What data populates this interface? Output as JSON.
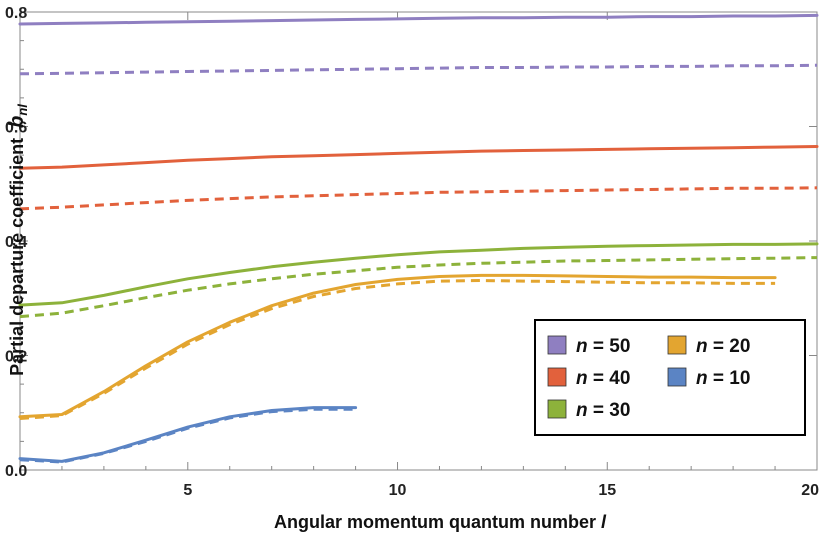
{
  "chart_data": {
    "type": "line",
    "title": "",
    "xlabel": "Angular momentum quantum number",
    "xlabel_symbol": "l",
    "ylabel": "Partial departure coefficient",
    "ylabel_symbol": "b",
    "ylabel_subscript": "nl",
    "xlim": [
      1,
      20
    ],
    "ylim": [
      0,
      0.8
    ],
    "x_ticks": [
      5,
      10,
      15,
      20
    ],
    "y_ticks": [
      0.0,
      0.2,
      0.4,
      0.6,
      0.8
    ],
    "x_tick_labels": [
      "5",
      "10",
      "15",
      "20"
    ],
    "y_tick_labels": [
      "0.0",
      "0.2",
      "0.4",
      "0.6",
      "0.8"
    ],
    "grid": false,
    "legend_position": "bottom-right",
    "legend_symbol": "n",
    "legend_eq": "=",
    "series": [
      {
        "name": "50",
        "legend_row": 0,
        "legend_col": 0,
        "color": "#8F7FC1",
        "style": "solid",
        "x": [
          1,
          2,
          3,
          4,
          5,
          6,
          7,
          8,
          9,
          10,
          11,
          12,
          13,
          14,
          15,
          16,
          17,
          18,
          19,
          20
        ],
        "y": [
          0.779,
          0.78,
          0.781,
          0.782,
          0.783,
          0.784,
          0.785,
          0.786,
          0.787,
          0.788,
          0.789,
          0.79,
          0.79,
          0.791,
          0.791,
          0.792,
          0.792,
          0.793,
          0.793,
          0.794
        ]
      },
      {
        "name": "",
        "color": "#8F7FC1",
        "style": "dashed",
        "x": [
          1,
          2,
          3,
          4,
          5,
          6,
          7,
          8,
          9,
          10,
          11,
          12,
          13,
          14,
          15,
          16,
          17,
          18,
          19,
          20
        ],
        "y": [
          0.692,
          0.693,
          0.694,
          0.695,
          0.696,
          0.697,
          0.698,
          0.699,
          0.7,
          0.701,
          0.702,
          0.703,
          0.703,
          0.704,
          0.704,
          0.705,
          0.705,
          0.706,
          0.706,
          0.707
        ]
      },
      {
        "name": "40",
        "legend_row": 1,
        "legend_col": 0,
        "color": "#E2613C",
        "style": "solid",
        "x": [
          1,
          2,
          3,
          4,
          5,
          6,
          7,
          8,
          9,
          10,
          11,
          12,
          13,
          14,
          15,
          16,
          17,
          18,
          19,
          20
        ],
        "y": [
          0.527,
          0.529,
          0.533,
          0.537,
          0.541,
          0.544,
          0.547,
          0.549,
          0.551,
          0.553,
          0.555,
          0.557,
          0.558,
          0.559,
          0.56,
          0.561,
          0.562,
          0.563,
          0.564,
          0.565
        ]
      },
      {
        "name": "",
        "color": "#E2613C",
        "style": "dashed",
        "x": [
          1,
          2,
          3,
          4,
          5,
          6,
          7,
          8,
          9,
          10,
          11,
          12,
          13,
          14,
          15,
          16,
          17,
          18,
          19,
          20
        ],
        "y": [
          0.456,
          0.459,
          0.463,
          0.467,
          0.471,
          0.474,
          0.477,
          0.479,
          0.481,
          0.483,
          0.485,
          0.486,
          0.487,
          0.488,
          0.489,
          0.49,
          0.491,
          0.492,
          0.492,
          0.493
        ]
      },
      {
        "name": "30",
        "legend_row": 2,
        "legend_col": 0,
        "color": "#8DB23B",
        "style": "solid",
        "x": [
          1,
          2,
          3,
          4,
          5,
          6,
          7,
          8,
          9,
          10,
          11,
          12,
          13,
          14,
          15,
          16,
          17,
          18,
          19,
          20
        ],
        "y": [
          0.288,
          0.292,
          0.305,
          0.32,
          0.334,
          0.345,
          0.355,
          0.363,
          0.37,
          0.376,
          0.381,
          0.384,
          0.387,
          0.389,
          0.391,
          0.392,
          0.393,
          0.394,
          0.394,
          0.395
        ]
      },
      {
        "name": "",
        "color": "#8DB23B",
        "style": "dashed",
        "x": [
          1,
          2,
          3,
          4,
          5,
          6,
          7,
          8,
          9,
          10,
          11,
          12,
          13,
          14,
          15,
          16,
          17,
          18,
          19,
          20
        ],
        "y": [
          0.268,
          0.274,
          0.287,
          0.301,
          0.314,
          0.325,
          0.334,
          0.342,
          0.348,
          0.354,
          0.358,
          0.361,
          0.363,
          0.365,
          0.366,
          0.367,
          0.368,
          0.369,
          0.37,
          0.371
        ]
      },
      {
        "name": "20",
        "legend_row": 0,
        "legend_col": 1,
        "color": "#E3A530",
        "style": "solid",
        "x": [
          1,
          2,
          3,
          4,
          5,
          6,
          7,
          8,
          9,
          10,
          11,
          12,
          13,
          14,
          15,
          16,
          17,
          18,
          19
        ],
        "y": [
          0.093,
          0.097,
          0.137,
          0.182,
          0.224,
          0.258,
          0.287,
          0.309,
          0.324,
          0.333,
          0.338,
          0.34,
          0.34,
          0.339,
          0.338,
          0.337,
          0.337,
          0.336,
          0.336
        ]
      },
      {
        "name": "",
        "color": "#E3A530",
        "style": "dashed",
        "x": [
          1,
          2,
          3,
          4,
          5,
          6,
          7,
          8,
          9,
          10,
          11,
          12,
          13,
          14,
          15,
          16,
          17,
          18,
          19
        ],
        "y": [
          0.09,
          0.095,
          0.134,
          0.178,
          0.22,
          0.254,
          0.282,
          0.303,
          0.317,
          0.325,
          0.33,
          0.331,
          0.33,
          0.329,
          0.328,
          0.327,
          0.327,
          0.326,
          0.326
        ]
      },
      {
        "name": "10",
        "legend_row": 1,
        "legend_col": 1,
        "color": "#5B84C4",
        "style": "solid",
        "x": [
          1,
          2,
          3,
          4,
          5,
          6,
          7,
          8,
          9
        ],
        "y": [
          0.02,
          0.015,
          0.03,
          0.052,
          0.075,
          0.093,
          0.104,
          0.109,
          0.109
        ]
      },
      {
        "name": "",
        "color": "#5B84C4",
        "style": "dashed",
        "x": [
          1,
          2,
          3,
          4,
          5,
          6,
          7,
          8,
          9
        ],
        "y": [
          0.018,
          0.014,
          0.029,
          0.05,
          0.073,
          0.091,
          0.102,
          0.106,
          0.106
        ]
      }
    ]
  }
}
